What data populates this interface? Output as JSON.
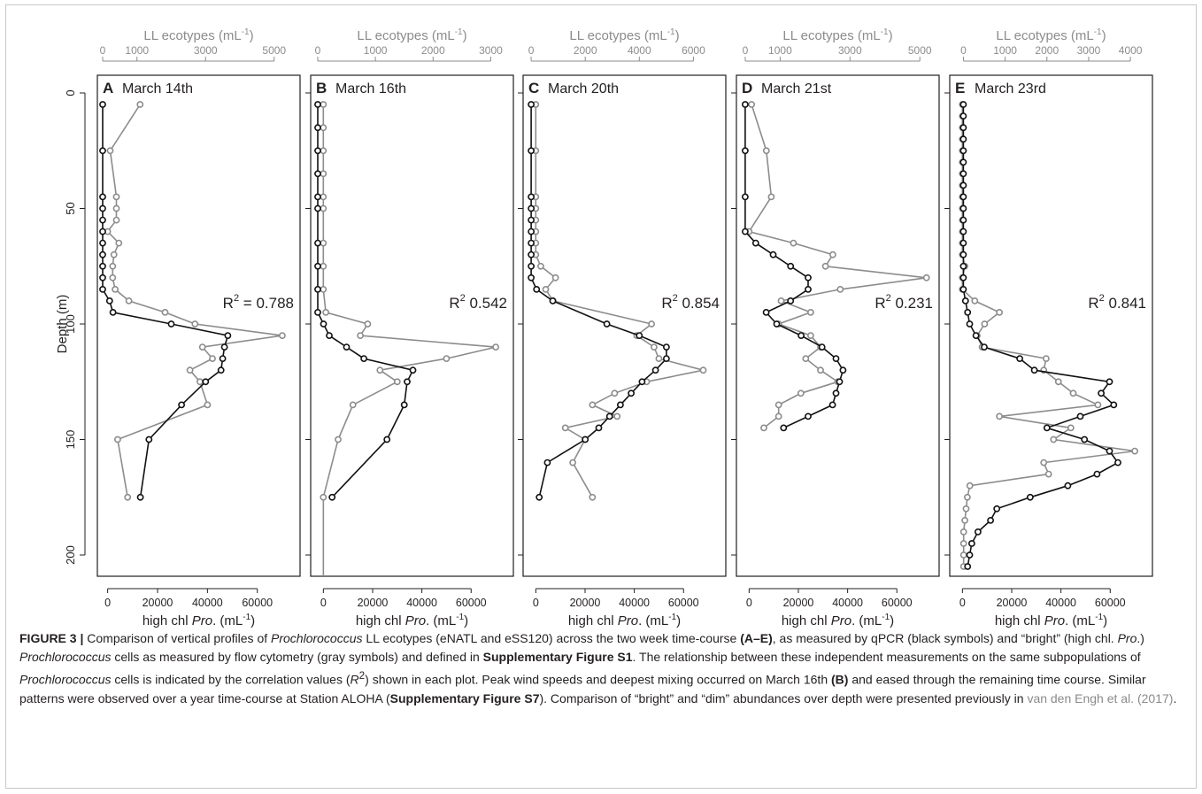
{
  "figure": {
    "y_axis_label": "Depth (m)",
    "depth_ticks": [
      0,
      50,
      100,
      150,
      200
    ],
    "depth_range": [
      -5,
      210
    ],
    "top_axis_label": "LL ecotypes (mL",
    "bottom_axis_label_prefix": "high chl ",
    "bottom_axis_label_italic": "Pro",
    "bottom_axis_label_suffix": ". (mL",
    "unit_exp": "-1",
    "unit_close": ")",
    "r2_prefix": "R",
    "r2_exp": "2",
    "colors": {
      "qpcr": "#111111",
      "flow": "#8c8c8c",
      "axis": "#231f20"
    }
  },
  "chart_data": [
    {
      "type": "line",
      "panel": "A",
      "title": "March 14th",
      "r2": "= 0.788",
      "top_axis": {
        "range": [
          0,
          5600
        ],
        "ticks": [
          0,
          1000,
          3000,
          5000
        ]
      },
      "bottom_axis": {
        "range": [
          -2000,
          75000
        ],
        "ticks": [
          0,
          20000,
          40000,
          60000
        ]
      },
      "series": [
        {
          "kind": "qpcr",
          "depth": [
            5,
            25,
            45,
            50,
            55,
            60,
            65,
            70,
            75,
            80,
            85,
            90,
            95,
            100,
            105,
            110,
            115,
            120,
            125,
            135,
            150,
            175
          ],
          "values": [
            0,
            0,
            0,
            0,
            0,
            0,
            0,
            0,
            0,
            0,
            0,
            200,
            300,
            2000,
            3650,
            3550,
            3500,
            3450,
            3000,
            2300,
            1350,
            1100
          ]
        },
        {
          "kind": "flow",
          "depth": [
            5,
            25,
            45,
            50,
            55,
            60,
            65,
            70,
            75,
            80,
            85,
            90,
            95,
            100,
            105,
            110,
            115,
            120,
            125,
            135,
            150,
            175
          ],
          "values": [
            13000,
            1000,
            3500,
            3500,
            3500,
            0,
            4500,
            2500,
            2000,
            2000,
            3000,
            8500,
            23000,
            35000,
            70000,
            38000,
            42000,
            33000,
            37000,
            40000,
            4000,
            8000
          ]
        }
      ]
    },
    {
      "type": "line",
      "panel": "B",
      "title": "March 16th",
      "r2": "0.542",
      "top_axis": {
        "range": [
          -30,
          3300
        ],
        "ticks": [
          0,
          1000,
          2000,
          3000
        ]
      },
      "bottom_axis": {
        "range": [
          -3000,
          75000
        ],
        "ticks": [
          0,
          20000,
          40000,
          60000
        ]
      },
      "series": [
        {
          "kind": "qpcr",
          "depth": [
            5,
            15,
            25,
            35,
            45,
            50,
            65,
            75,
            85,
            95,
            100,
            105,
            110,
            115,
            120,
            125,
            135,
            150,
            175
          ],
          "values": [
            0,
            0,
            0,
            0,
            0,
            0,
            0,
            0,
            0,
            0,
            100,
            200,
            500,
            800,
            1650,
            1550,
            1500,
            1200,
            250
          ]
        },
        {
          "kind": "flow",
          "depth": [
            5,
            15,
            25,
            35,
            45,
            50,
            65,
            75,
            85,
            95,
            100,
            105,
            110,
            115,
            120,
            125,
            135,
            150,
            175
          ],
          "values": [
            0,
            0,
            0,
            0,
            0,
            0,
            0,
            0,
            0,
            1000,
            18000,
            15000,
            70000,
            50000,
            23000,
            30000,
            12000,
            6000,
            0
          ]
        }
      ]
    },
    {
      "type": "line",
      "panel": "C",
      "title": "March 20th",
      "r2": "0.854",
      "top_axis": {
        "range": [
          -100,
          7000
        ],
        "ticks": [
          0,
          2000,
          4000,
          6000
        ]
      },
      "bottom_axis": {
        "range": [
          -3000,
          75000
        ],
        "ticks": [
          0,
          20000,
          40000,
          60000
        ]
      },
      "series": [
        {
          "kind": "qpcr",
          "depth": [
            5,
            25,
            45,
            50,
            55,
            60,
            65,
            70,
            75,
            80,
            85,
            90,
            100,
            105,
            110,
            115,
            120,
            125,
            130,
            135,
            140,
            145,
            150,
            160,
            175
          ],
          "values": [
            0,
            0,
            0,
            0,
            0,
            0,
            0,
            0,
            0,
            0,
            200,
            800,
            2800,
            4000,
            5000,
            5000,
            4600,
            4100,
            3700,
            3300,
            2900,
            2500,
            2000,
            600,
            300
          ]
        },
        {
          "kind": "flow",
          "depth": [
            5,
            25,
            45,
            50,
            55,
            60,
            65,
            70,
            75,
            80,
            85,
            90,
            100,
            105,
            110,
            115,
            120,
            125,
            130,
            135,
            140,
            145,
            150,
            160,
            175
          ],
          "values": [
            0,
            0,
            0,
            0,
            0,
            0,
            0,
            0,
            2000,
            8000,
            4000,
            7000,
            47000,
            41000,
            48000,
            50000,
            68000,
            45000,
            32000,
            23000,
            33000,
            12000,
            20000,
            15000,
            23000
          ]
        }
      ]
    },
    {
      "type": "line",
      "panel": "D",
      "title": "March 21st",
      "r2": "0.231",
      "top_axis": {
        "range": [
          -100,
          5400
        ],
        "ticks": [
          0,
          1000,
          3000,
          5000
        ]
      },
      "bottom_axis": {
        "range": [
          -3000,
          75000
        ],
        "ticks": [
          0,
          20000,
          40000,
          60000
        ]
      },
      "series": [
        {
          "kind": "qpcr",
          "depth": [
            5,
            25,
            45,
            60,
            65,
            70,
            75,
            80,
            85,
            90,
            95,
            100,
            105,
            110,
            115,
            120,
            125,
            130,
            135,
            140,
            145
          ],
          "values": [
            0,
            0,
            0,
            0,
            300,
            800,
            1300,
            1800,
            1800,
            1300,
            600,
            900,
            1600,
            2200,
            2600,
            2800,
            2700,
            2600,
            2500,
            1800,
            1100
          ]
        },
        {
          "kind": "flow",
          "depth": [
            5,
            25,
            45,
            60,
            65,
            70,
            75,
            80,
            85,
            90,
            95,
            100,
            105,
            110,
            115,
            120,
            125,
            130,
            135,
            140,
            145
          ],
          "values": [
            1000,
            7000,
            9000,
            0,
            18000,
            34000,
            31000,
            72000,
            37000,
            13000,
            25000,
            12000,
            25000,
            29000,
            23000,
            29000,
            36000,
            21000,
            12000,
            12000,
            6000
          ]
        }
      ]
    },
    {
      "type": "line",
      "panel": "E",
      "title": "March 23rd",
      "r2": "0.841",
      "top_axis": {
        "range": [
          -200,
          4400
        ],
        "ticks": [
          0,
          1000,
          2000,
          3000,
          4000
        ]
      },
      "bottom_axis": {
        "range": [
          -3000,
          75000
        ],
        "ticks": [
          0,
          20000,
          40000,
          60000
        ]
      },
      "series": [
        {
          "kind": "qpcr",
          "depth": [
            5,
            10,
            15,
            20,
            25,
            30,
            35,
            40,
            45,
            50,
            55,
            60,
            65,
            70,
            75,
            80,
            85,
            90,
            95,
            100,
            105,
            110,
            115,
            120,
            125,
            130,
            135,
            140,
            145,
            150,
            155,
            160,
            165,
            170,
            175,
            180,
            185,
            190,
            195,
            200,
            205
          ],
          "values": [
            0,
            0,
            0,
            0,
            0,
            0,
            0,
            0,
            0,
            0,
            0,
            0,
            0,
            0,
            0,
            0,
            0,
            50,
            100,
            150,
            300,
            500,
            1350,
            1700,
            3500,
            3300,
            3600,
            2800,
            2000,
            2900,
            3500,
            3700,
            3200,
            2500,
            1600,
            800,
            650,
            350,
            200,
            150,
            100
          ]
        },
        {
          "kind": "flow",
          "depth": [
            5,
            10,
            15,
            20,
            25,
            30,
            35,
            40,
            45,
            50,
            55,
            60,
            65,
            70,
            75,
            80,
            85,
            90,
            95,
            100,
            105,
            110,
            115,
            120,
            125,
            130,
            135,
            140,
            145,
            150,
            155,
            160,
            165,
            170,
            175,
            180,
            185,
            190,
            195,
            200,
            205
          ],
          "values": [
            0,
            0,
            0,
            0,
            0,
            0,
            0,
            0,
            0,
            0,
            0,
            0,
            0,
            0,
            1000,
            0,
            0,
            5000,
            15000,
            9000,
            6000,
            8000,
            34000,
            33000,
            39000,
            45000,
            55000,
            15000,
            44000,
            37000,
            70000,
            33000,
            35000,
            3000,
            2000,
            1500,
            1000,
            500,
            500,
            500,
            500
          ]
        }
      ]
    }
  ],
  "caption": {
    "fig_label": "FIGURE 3 |",
    "t1": " Comparison of vertical profiles of ",
    "i1": "Prochlorococcus",
    "t2": " LL ecotypes (eNATL and eSS120) across the two week time-course ",
    "b1": "(A–E)",
    "t3": ", as measured by qPCR (black symbols) and “bright” (high chl. ",
    "i2": "Pro",
    "t4": ".) ",
    "i3": "Prochlorococcus",
    "t5": " cells as measured by flow cytometry (gray symbols) and defined in ",
    "b2": "Supplementary Figure S1",
    "t6": ". The relationship between these independent measurements on the same subpopulations of ",
    "i4": "Prochlorococcus",
    "t7": " cells is indicated by the correlation values (",
    "i5": "R",
    "sup1": "2",
    "t8": ") shown in each plot. Peak wind speeds and deepest mixing occurred on March 16th ",
    "b3": "(B)",
    "t9": " and eased through the remaining time course. Similar patterns were observed over a year time-course at Station ALOHA (",
    "b4": "Supplementary Figure S7",
    "t10": "). Comparison of “bright” and “dim” abundances over depth were presented previously in ",
    "link1": "van den Engh et al. (2017)",
    "t11": "."
  }
}
